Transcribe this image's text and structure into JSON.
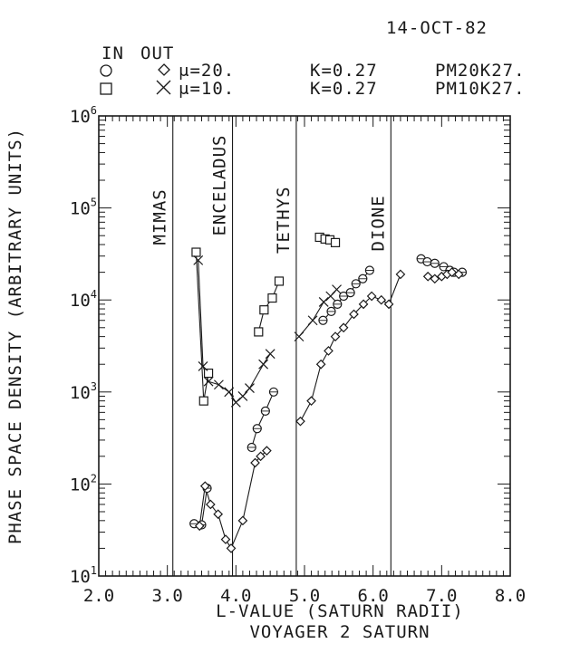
{
  "header": {
    "date": "14-OCT-82",
    "in_label": "IN",
    "out_label": "OUT",
    "legend": [
      {
        "mu": "μ=20.",
        "k": "K=0.27",
        "code": "PM20K27."
      },
      {
        "mu": "μ=10.",
        "k": "K=0.27",
        "code": "PM10K27."
      }
    ]
  },
  "chart_data": {
    "type": "scatter",
    "title": "VOYAGER 2 SATURN",
    "xlabel": "L-VALUE (SATURN RADII)",
    "ylabel": "PHASE SPACE DENSITY (ARBITRARY UNITS)",
    "xlim": [
      2.0,
      8.0
    ],
    "ylim_log10": [
      1,
      6
    ],
    "yscale": "log",
    "x_ticks": [
      "2.0",
      "3.0",
      "4.0",
      "5.0",
      "6.0",
      "7.0",
      "8.0"
    ],
    "y_ticks": [
      {
        "base": "10",
        "exp": "1"
      },
      {
        "base": "10",
        "exp": "2"
      },
      {
        "base": "10",
        "exp": "3"
      },
      {
        "base": "10",
        "exp": "4"
      },
      {
        "base": "10",
        "exp": "5"
      },
      {
        "base": "10",
        "exp": "6"
      }
    ],
    "moons": [
      {
        "name": "MIMAS",
        "x": 3.08
      },
      {
        "name": "ENCELADUS",
        "x": 3.95
      },
      {
        "name": "TETHYS",
        "x": 4.88
      },
      {
        "name": "DIONE",
        "x": 6.26
      }
    ],
    "series": [
      {
        "marker": "square",
        "direction": "in",
        "mu": "20",
        "x": [
          3.42,
          3.53,
          3.6,
          4.33,
          4.41,
          4.53,
          4.63,
          5.22,
          5.3,
          5.37,
          5.45
        ],
        "y": [
          33000,
          800,
          1600,
          4500,
          7800,
          10500,
          16000,
          48000,
          46000,
          45000,
          42000
        ],
        "connected": [
          [
            0,
            1
          ],
          [
            1,
            2
          ],
          [
            3,
            4
          ],
          [
            4,
            5
          ],
          [
            5,
            6
          ]
        ]
      },
      {
        "marker": "x",
        "direction": "in",
        "mu": "10",
        "x": [
          3.45,
          3.52,
          3.6,
          3.75,
          3.9,
          4.0,
          4.1,
          4.2,
          4.4,
          4.5,
          4.92,
          5.12,
          5.28,
          5.38,
          5.47
        ],
        "y": [
          27000,
          1900,
          1300,
          1200,
          1000,
          770,
          900,
          1100,
          2000,
          2600,
          4000,
          6000,
          9500,
          11000,
          13000
        ],
        "connected": [
          [
            0,
            1
          ],
          [
            1,
            2
          ],
          [
            2,
            3
          ],
          [
            3,
            4
          ],
          [
            4,
            5
          ],
          [
            5,
            6
          ],
          [
            6,
            7
          ],
          [
            7,
            8
          ],
          [
            8,
            9
          ],
          [
            10,
            11
          ],
          [
            11,
            12
          ],
          [
            12,
            13
          ],
          [
            13,
            14
          ]
        ]
      },
      {
        "marker": "circle",
        "direction": "out",
        "mu": "20",
        "x": [
          3.39,
          3.5,
          3.58,
          4.23,
          4.31,
          4.43,
          4.55,
          5.27,
          5.39,
          5.48,
          5.57,
          5.67,
          5.75,
          5.85,
          5.95,
          6.7,
          6.79,
          6.9,
          7.03,
          7.12,
          7.18,
          7.3
        ],
        "y": [
          37,
          36,
          90,
          250,
          400,
          620,
          1000,
          6000,
          7500,
          9000,
          11000,
          12000,
          15000,
          17000,
          21000,
          28000,
          26000,
          25000,
          23000,
          21000,
          20000,
          20000
        ],
        "connected": [
          [
            0,
            1
          ],
          [
            1,
            2
          ],
          [
            3,
            4
          ],
          [
            4,
            5
          ],
          [
            5,
            6
          ],
          [
            7,
            8
          ],
          [
            8,
            9
          ],
          [
            9,
            10
          ],
          [
            10,
            11
          ],
          [
            11,
            12
          ],
          [
            12,
            13
          ],
          [
            13,
            14
          ],
          [
            15,
            16
          ],
          [
            16,
            17
          ],
          [
            17,
            18
          ],
          [
            18,
            19
          ],
          [
            19,
            20
          ],
          [
            20,
            21
          ]
        ]
      },
      {
        "marker": "diamond",
        "direction": "out",
        "mu": "10",
        "x": [
          3.47,
          3.55,
          3.63,
          3.74,
          3.85,
          3.93,
          4.1,
          4.28,
          4.36,
          4.45,
          4.94,
          5.1,
          5.24,
          5.35,
          5.45,
          5.57,
          5.72,
          5.86,
          5.98,
          6.12,
          6.23,
          6.4,
          6.8,
          6.9,
          7.0,
          7.08,
          7.15,
          7.25
        ],
        "y": [
          35,
          95,
          60,
          47,
          25,
          20,
          40,
          170,
          200,
          230,
          480,
          800,
          2000,
          2800,
          4000,
          5000,
          7000,
          9000,
          11000,
          10000,
          9000,
          19000,
          18000,
          17000,
          18000,
          19000,
          20000,
          19000
        ],
        "connected": [
          [
            0,
            1
          ],
          [
            1,
            2
          ],
          [
            2,
            3
          ],
          [
            3,
            4
          ],
          [
            4,
            5
          ],
          [
            5,
            6
          ],
          [
            6,
            7
          ],
          [
            7,
            8
          ],
          [
            8,
            9
          ],
          [
            10,
            11
          ],
          [
            11,
            12
          ],
          [
            12,
            13
          ],
          [
            13,
            14
          ],
          [
            14,
            15
          ],
          [
            15,
            16
          ],
          [
            16,
            17
          ],
          [
            17,
            18
          ],
          [
            18,
            19
          ],
          [
            19,
            20
          ],
          [
            20,
            21
          ],
          [
            22,
            23
          ],
          [
            23,
            24
          ],
          [
            24,
            25
          ],
          [
            25,
            26
          ],
          [
            26,
            27
          ]
        ]
      }
    ]
  }
}
